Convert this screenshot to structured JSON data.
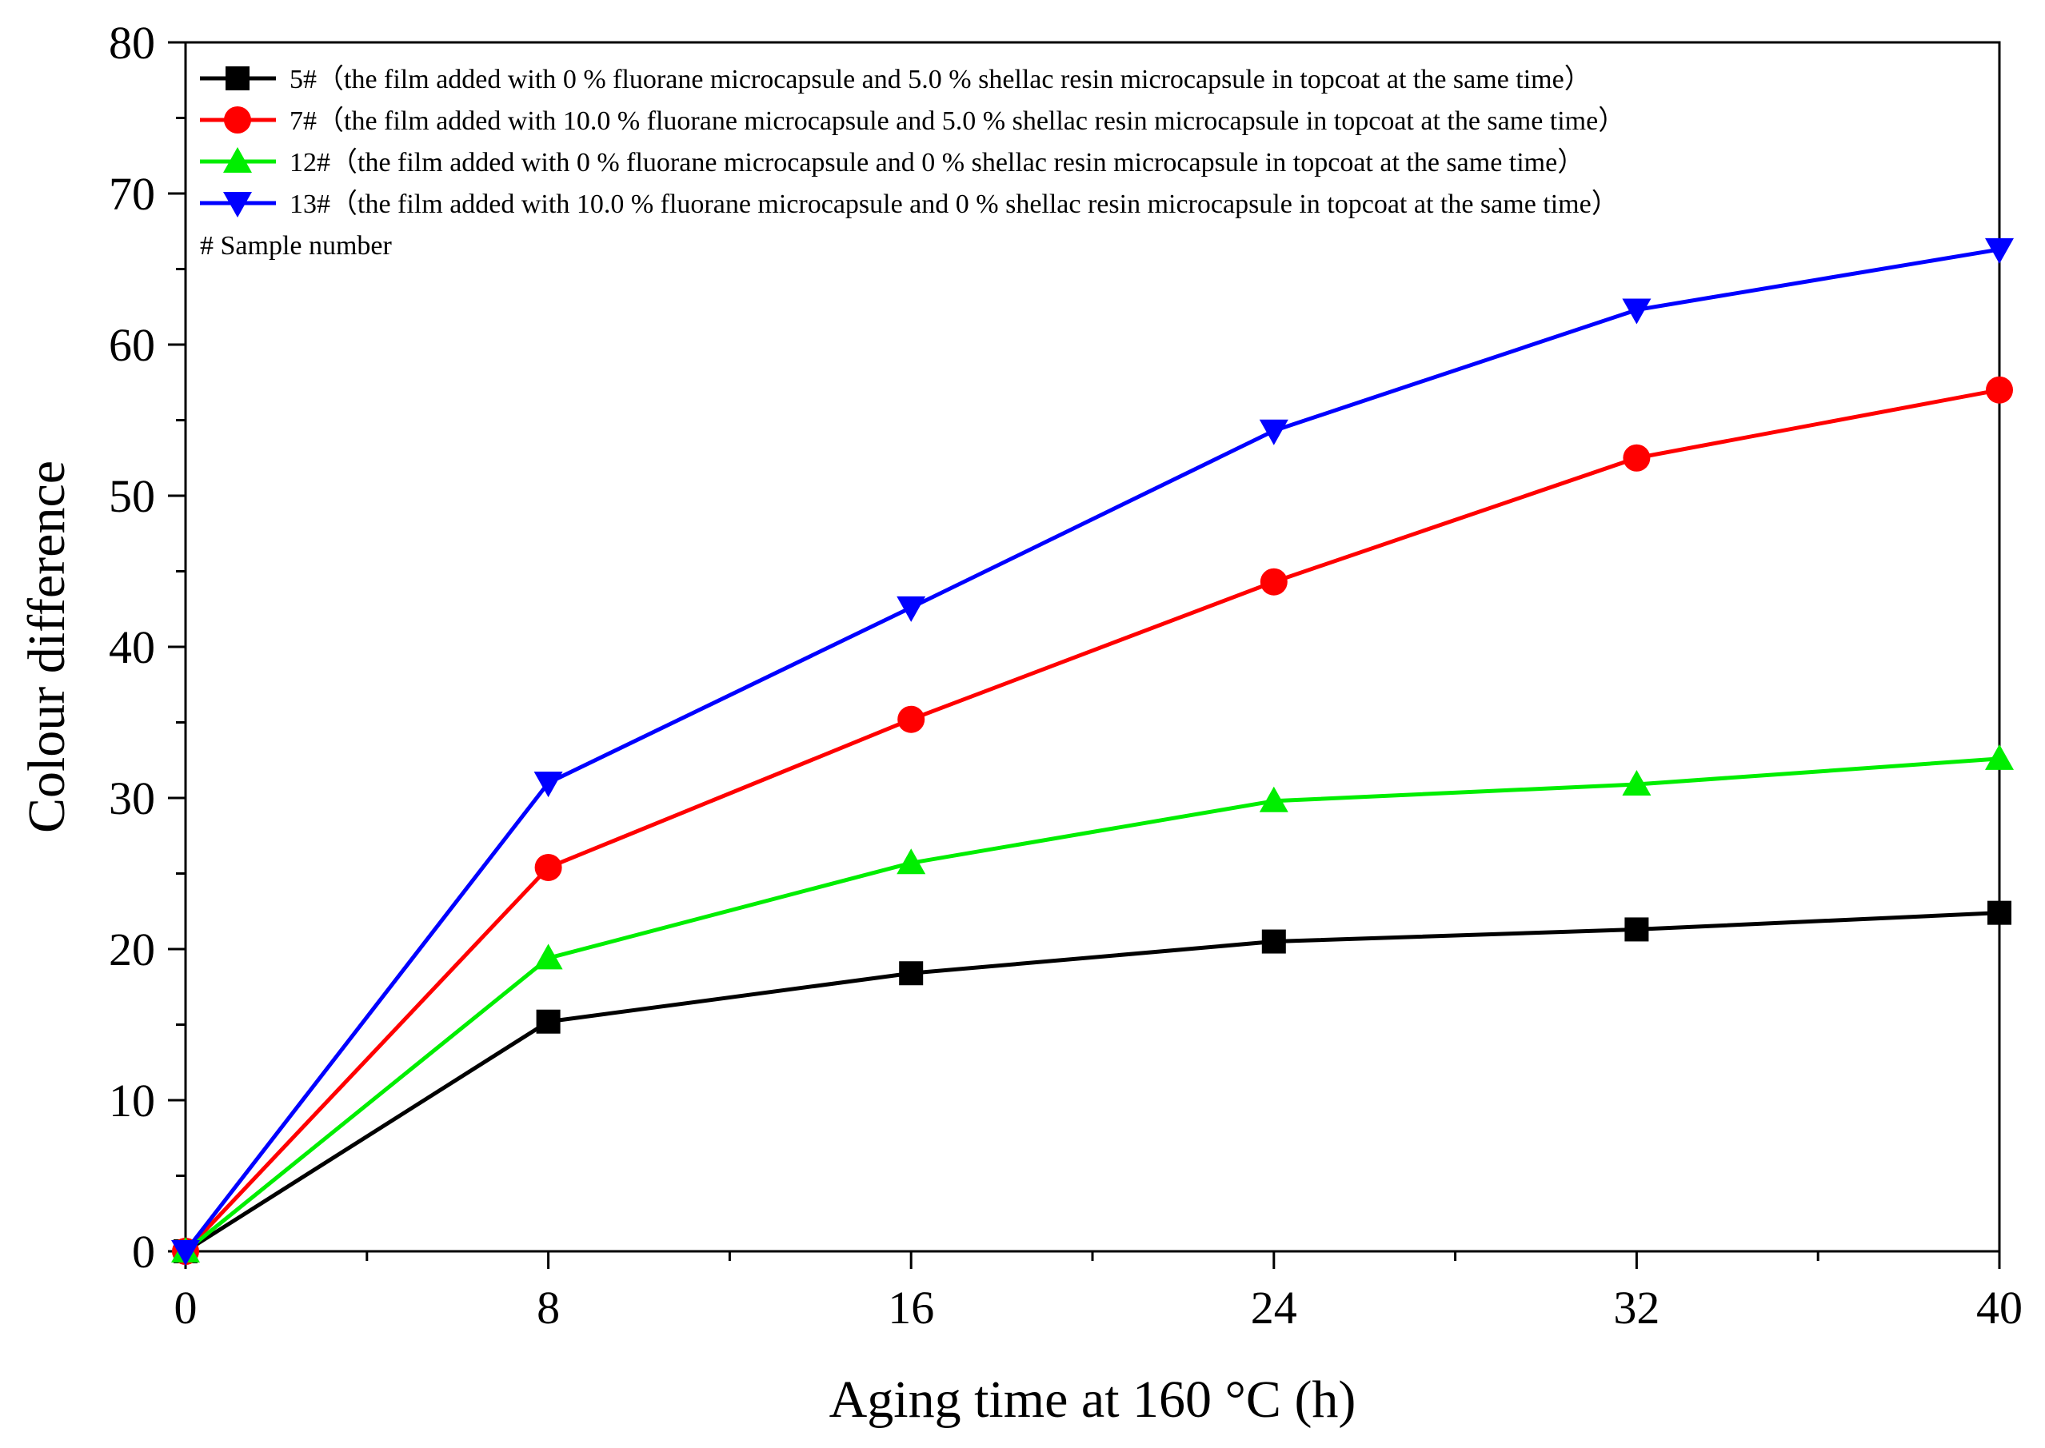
{
  "chart_data": {
    "type": "line",
    "title": "",
    "xlabel": "Aging time at 160 °C (h)",
    "ylabel": "Colour difference",
    "x": [
      0,
      8,
      16,
      24,
      32,
      40
    ],
    "xlim": [
      0,
      40
    ],
    "ylim": [
      0,
      80
    ],
    "xticks": [
      0,
      8,
      16,
      24,
      32,
      40
    ],
    "yticks": [
      0,
      10,
      20,
      30,
      40,
      50,
      60,
      70,
      80
    ],
    "grid": false,
    "legend_position": "top-left",
    "series": [
      {
        "name": "5#（the film added with 0 % fluorane microcapsule and 5.0 % shellac resin microcapsule in topcoat at the same time）",
        "color": "#000000",
        "marker": "square",
        "values": [
          0,
          15.2,
          18.4,
          20.5,
          21.3,
          22.4
        ]
      },
      {
        "name": "7#（the film added with 10.0 % fluorane microcapsule and 5.0 % shellac resin microcapsule in topcoat at the same time）",
        "color": "#ff0000",
        "marker": "circle",
        "values": [
          0,
          25.4,
          35.2,
          44.3,
          52.5,
          57.0
        ]
      },
      {
        "name": "12#（the film added with 0 % fluorane microcapsule and 0 % shellac resin microcapsule in topcoat at the same time）",
        "color": "#00ee00",
        "marker": "triangle-up",
        "values": [
          0,
          19.4,
          25.7,
          29.8,
          30.9,
          32.6
        ]
      },
      {
        "name": "13#（the film added with 10.0 % fluorane microcapsule and 0 % shellac resin microcapsule in topcoat at the same time）",
        "color": "#0000ff",
        "marker": "triangle-down",
        "values": [
          0,
          31.0,
          42.6,
          54.3,
          62.3,
          66.3
        ]
      }
    ],
    "legend_note": "# Sample number"
  }
}
